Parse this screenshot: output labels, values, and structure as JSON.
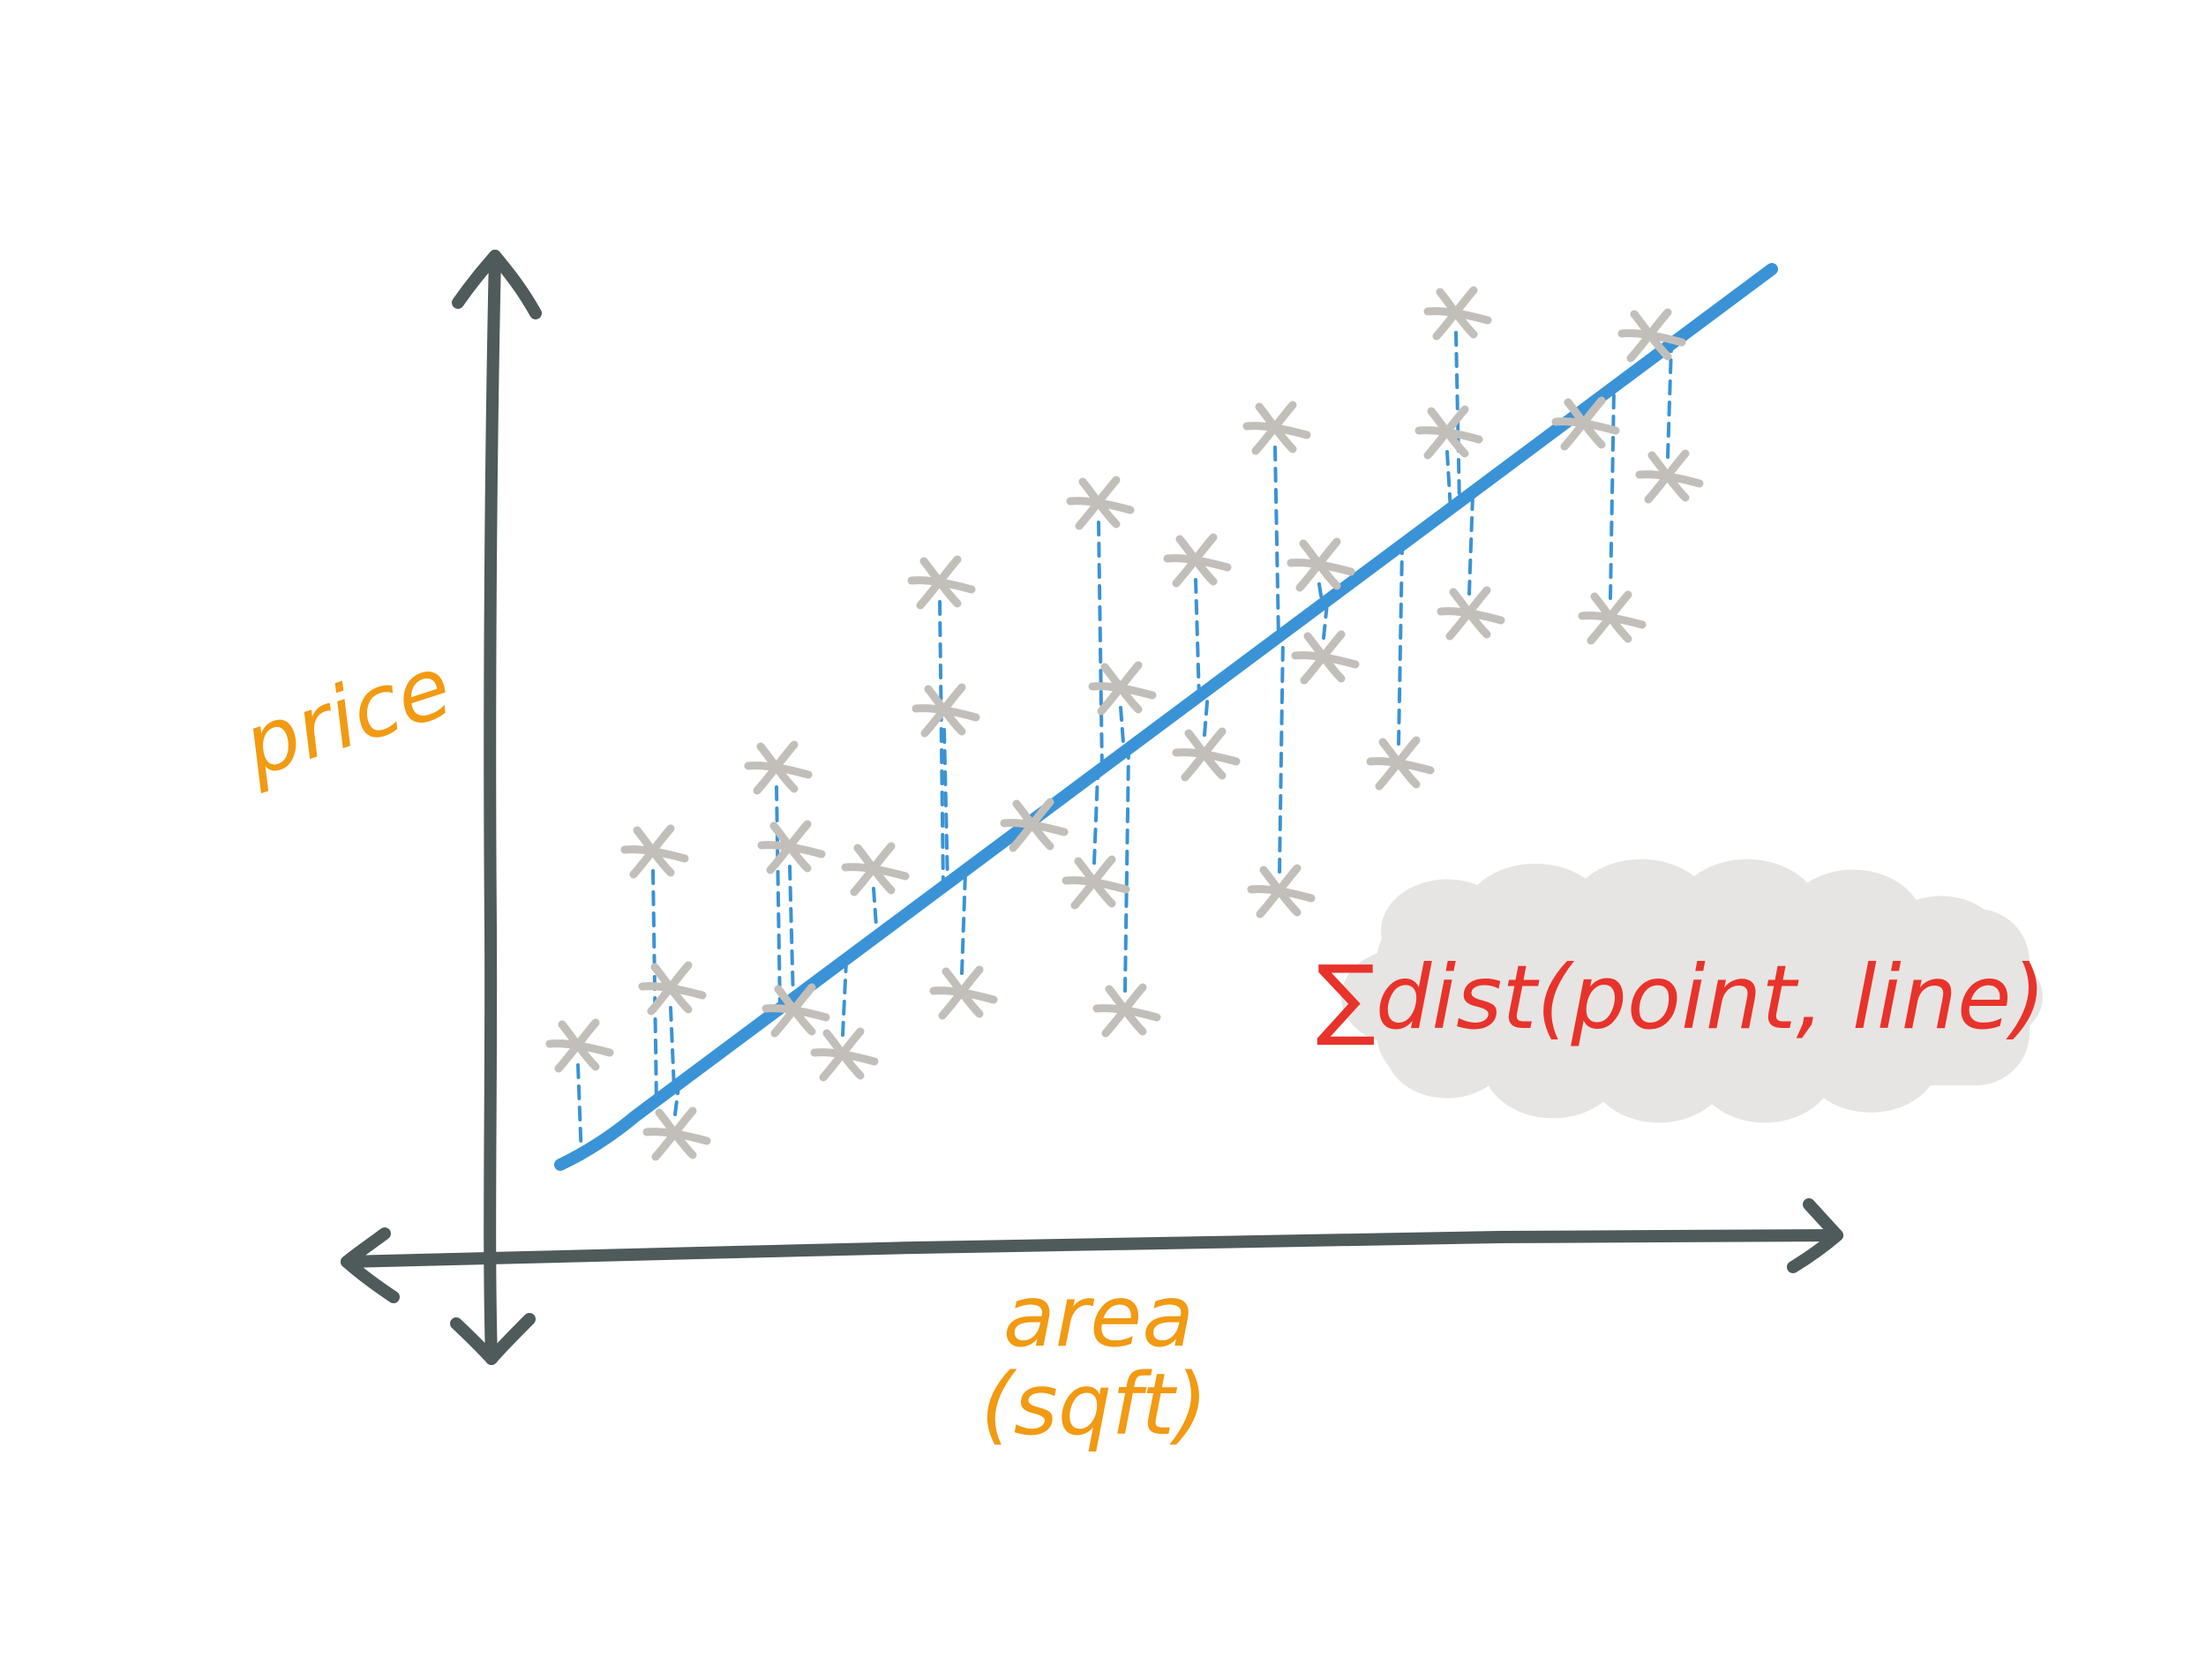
{
  "colors": {
    "axis": "#4f5a5a",
    "fit_line": "#3a93d6",
    "residual": "#3a93d6",
    "point": "#c2bfba",
    "axis_label": "#f29a12",
    "formula": "#e8332b",
    "formula_bubble": "#e6e5e3"
  },
  "labels": {
    "y_axis": "price",
    "x_axis_line1": "area",
    "x_axis_line2": "(sqft)",
    "formula": "∑dist(point, line)"
  }
}
